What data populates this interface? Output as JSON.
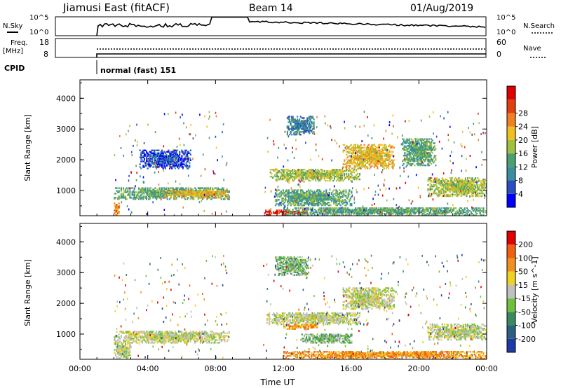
{
  "header": {
    "station": "Jiamusi East (fitACF)",
    "beam": "Beam 14",
    "date": "01/Aug/2019"
  },
  "nsky_panel": {
    "left_label": "N.Sky",
    "right_label": "N.Search",
    "ticks": [
      "10^5",
      "10^0"
    ]
  },
  "freq_panel": {
    "left_label_line1": "Freq.",
    "left_label_line2": "[MHz]",
    "left_ticks": [
      "18",
      "8"
    ],
    "right_label": "Nave",
    "right_ticks": [
      "60",
      "0"
    ]
  },
  "cpid": {
    "label": "CPID",
    "mode": "normal (fast) 151"
  },
  "chart_data": [
    {
      "type": "heatmap",
      "name": "Power",
      "ylabel": "Slant Range [km]",
      "xlabel": "",
      "ylim": [
        180,
        4600
      ],
      "yticks": [
        "1000",
        "2000",
        "3000",
        "4000"
      ],
      "xlim_hours": [
        0,
        24
      ],
      "xticks": [
        "00:00",
        "04:00",
        "08:00",
        "12:00",
        "16:00",
        "20:00",
        "00:00"
      ],
      "colorbar": {
        "label": "Power [dB]",
        "ticks": [
          "4",
          "8",
          "12",
          "16",
          "20",
          "24",
          "28"
        ],
        "colors": [
          "#0000ff",
          "#2a4fc0",
          "#3a8ea0",
          "#4aa070",
          "#a0c040",
          "#f0c020",
          "#f08020",
          "#e04010",
          "#e00000"
        ]
      },
      "regions": [
        {
          "t0": 2.0,
          "t1": 8.8,
          "r0": 700,
          "r1": 1100,
          "level": 3
        },
        {
          "t0": 5.0,
          "t1": 8.8,
          "r0": 750,
          "r1": 1000,
          "level": 5
        },
        {
          "t0": 3.5,
          "t1": 6.5,
          "r0": 1700,
          "r1": 2300,
          "level": 1
        },
        {
          "t0": 2.0,
          "t1": 2.3,
          "r0": 200,
          "r1": 600,
          "level": 6
        },
        {
          "t0": 10.8,
          "t1": 13.5,
          "r0": 200,
          "r1": 350,
          "level": 8
        },
        {
          "t0": 11.2,
          "t1": 16.5,
          "r0": 1300,
          "r1": 1700,
          "level": 4
        },
        {
          "t0": 12.2,
          "t1": 13.8,
          "r0": 2800,
          "r1": 3400,
          "level": 2
        },
        {
          "t0": 15.5,
          "t1": 18.5,
          "r0": 1700,
          "r1": 2500,
          "level": 5
        },
        {
          "t0": 19.0,
          "t1": 21.0,
          "r0": 1800,
          "r1": 2700,
          "level": 3
        },
        {
          "t0": 12.0,
          "t1": 24.0,
          "r0": 180,
          "r1": 450,
          "level": 3
        },
        {
          "t0": 20.5,
          "t1": 24.0,
          "r0": 800,
          "r1": 1400,
          "level": 4
        },
        {
          "t0": 11.5,
          "t1": 16.0,
          "r0": 500,
          "r1": 1000,
          "level": 3
        }
      ]
    },
    {
      "type": "heatmap",
      "name": "Velocity",
      "ylabel": "Slant Range [km]",
      "xlabel": "Time UT",
      "ylim": [
        180,
        4600
      ],
      "yticks": [
        "1000",
        "2000",
        "3000",
        "4000"
      ],
      "xlim_hours": [
        0,
        24
      ],
      "xticks": [
        "00:00",
        "04:00",
        "08:00",
        "12:00",
        "16:00",
        "20:00",
        "00:00"
      ],
      "colorbar": {
        "label": "Velocity [m s^-1]",
        "ticks": [
          "200",
          "100",
          "50",
          "15",
          "-15",
          "-50",
          "-100",
          "-200"
        ],
        "colors": [
          "#1e3aa8",
          "#2a6080",
          "#3a8a60",
          "#70c040",
          "#c0c0c0",
          "#f0d020",
          "#f09020",
          "#f06010",
          "#e00000"
        ]
      },
      "regions": [
        {
          "t0": 2.0,
          "t1": 8.8,
          "r0": 700,
          "r1": 1100,
          "level": 4
        },
        {
          "t0": 2.0,
          "t1": 3.0,
          "r0": 200,
          "r1": 700,
          "level": 4
        },
        {
          "t0": 11.0,
          "t1": 16.5,
          "r0": 1300,
          "r1": 1700,
          "level": 4
        },
        {
          "t0": 15.5,
          "t1": 18.5,
          "r0": 1800,
          "r1": 2500,
          "level": 4
        },
        {
          "t0": 12.0,
          "t1": 14.0,
          "r0": 1150,
          "r1": 1300,
          "level": 6
        },
        {
          "t0": 12.0,
          "t1": 24.0,
          "r0": 180,
          "r1": 450,
          "level": 6
        },
        {
          "t0": 20.5,
          "t1": 24.0,
          "r0": 800,
          "r1": 1300,
          "level": 4
        },
        {
          "t0": 11.5,
          "t1": 13.5,
          "r0": 2900,
          "r1": 3500,
          "level": 3
        },
        {
          "t0": 13.0,
          "t1": 16.0,
          "r0": 700,
          "r1": 1000,
          "level": 3
        }
      ]
    }
  ]
}
